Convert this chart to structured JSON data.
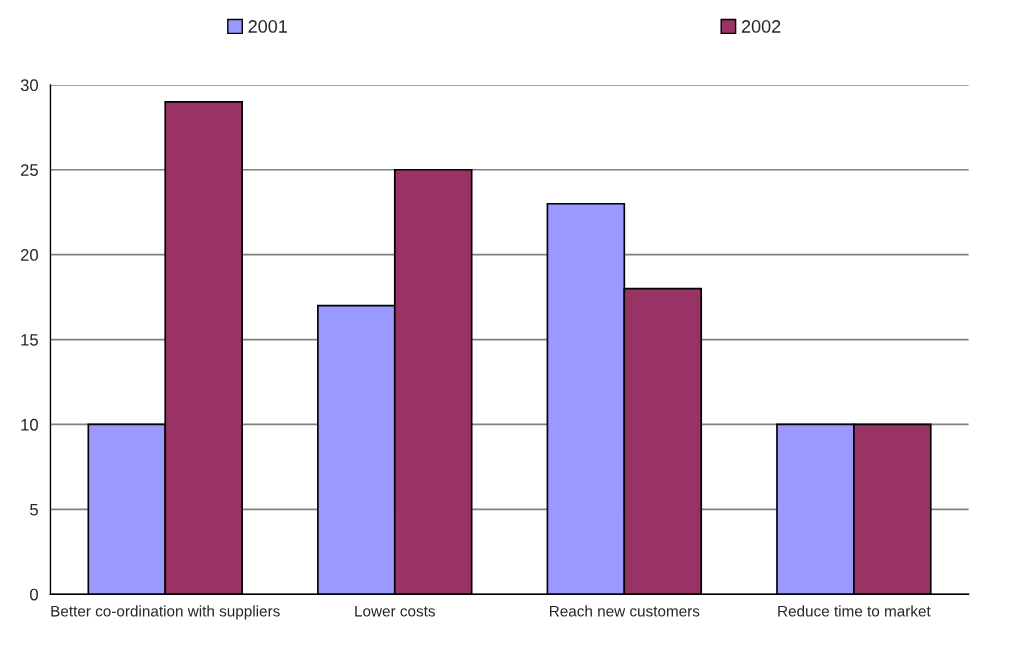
{
  "chart_data": {
    "type": "bar",
    "categories": [
      "Better co-ordination with suppliers",
      "Lower costs",
      "Reach new customers",
      "Reduce time to market"
    ],
    "series": [
      {
        "name": "2001",
        "color": "#9999ff",
        "values": [
          10,
          17,
          23,
          10
        ]
      },
      {
        "name": "2002",
        "color": "#993366",
        "values": [
          29,
          25,
          18,
          10
        ]
      }
    ],
    "ylim": [
      0,
      30
    ],
    "yticks": [
      0,
      5,
      10,
      15,
      20,
      25,
      30
    ],
    "grid": "y",
    "legend": "top"
  }
}
